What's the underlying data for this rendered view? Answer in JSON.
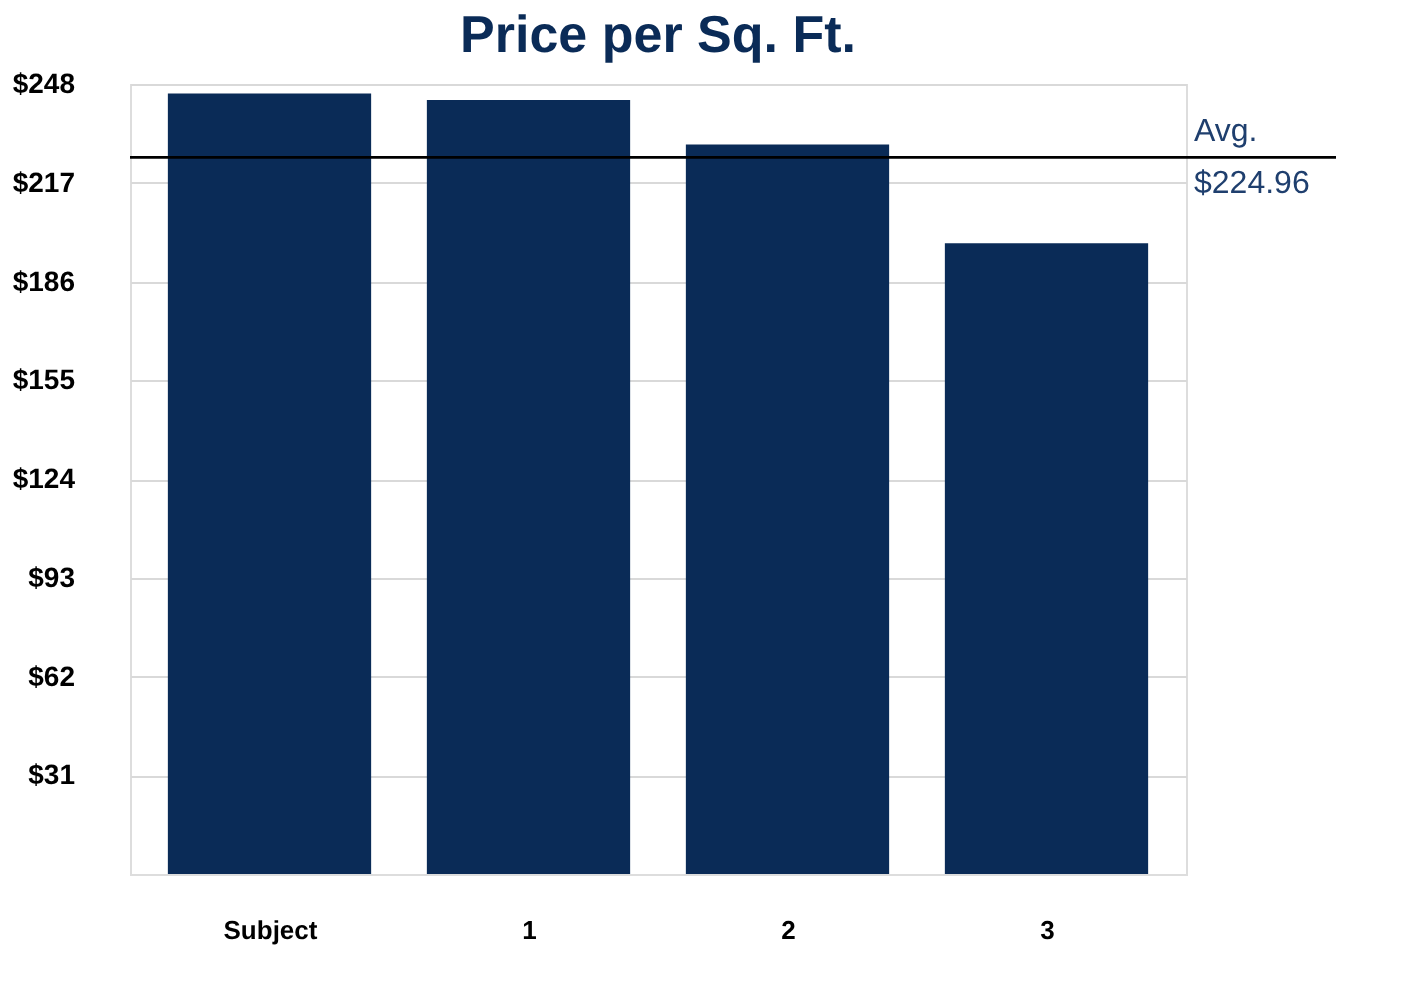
{
  "chart_data": {
    "type": "bar",
    "title": "Price per Sq. Ft.",
    "categories": [
      "Subject",
      "1",
      "2",
      "3"
    ],
    "values": [
      245,
      243,
      229,
      198
    ],
    "color": "#0a2b57",
    "ylim": [
      0,
      248
    ],
    "yticks": [
      {
        "value": 31,
        "label": "$31"
      },
      {
        "value": 62,
        "label": "$62"
      },
      {
        "value": 93,
        "label": "$93"
      },
      {
        "value": 124,
        "label": "$124"
      },
      {
        "value": 155,
        "label": "$155"
      },
      {
        "value": 186,
        "label": "$186"
      },
      {
        "value": 217,
        "label": "$217"
      },
      {
        "value": 248,
        "label": "$248"
      }
    ],
    "grid": "y",
    "ref_lines": [
      {
        "axis": "y",
        "value": 224.96,
        "label": "Avg.\n$224.96",
        "color": "#000000"
      }
    ]
  }
}
